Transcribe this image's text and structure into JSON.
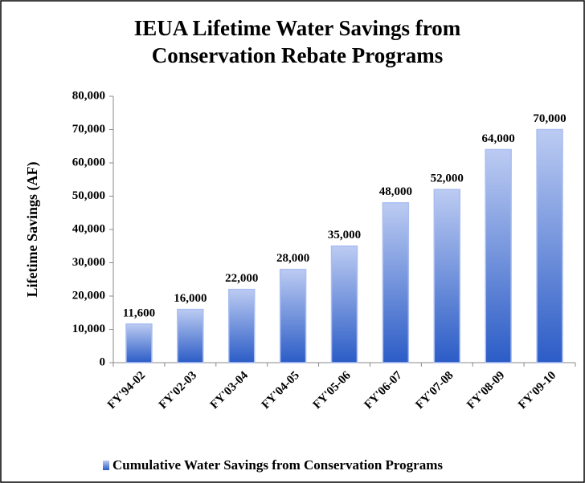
{
  "chart_data": {
    "type": "bar",
    "title": [
      "IEUA Lifetime Water Savings from",
      "Conservation Rebate Programs"
    ],
    "y_label": "Lifetime Savings (AF)",
    "categories": [
      "FY'94-02",
      "FY'02-03",
      "FY'03-04",
      "FY'04-05",
      "FY'05-06",
      "FY'06-07",
      "FY'07-08",
      "FY'08-09",
      "FY'09-10"
    ],
    "series": [
      {
        "name": "Cumulative Water Savings from Conservation Programs",
        "color": "#3d6fd0",
        "values": [
          11600,
          16000,
          22000,
          28000,
          35000,
          48000,
          52000,
          64000,
          70000
        ],
        "value_labels": [
          "11,600",
          "16,000",
          "22,000",
          "28,000",
          "35,000",
          "48,000",
          "52,000",
          "64,000",
          "70,000"
        ]
      }
    ],
    "ylim": [
      0,
      80000
    ],
    "yticks": [
      0,
      {
        "value": 10000,
        "label": "10,000"
      },
      {
        "value": 20000,
        "label": "20,000"
      },
      {
        "value": 30000,
        "label": "30,000"
      },
      {
        "value": 40000,
        "label": "40,000"
      },
      {
        "value": 50000,
        "label": "50,000"
      },
      {
        "value": 60000,
        "label": "60,000"
      },
      {
        "value": 70000,
        "label": "70,000"
      },
      {
        "value": 80000,
        "label": "80,000"
      }
    ],
    "grid": false,
    "legend": "bottom"
  }
}
